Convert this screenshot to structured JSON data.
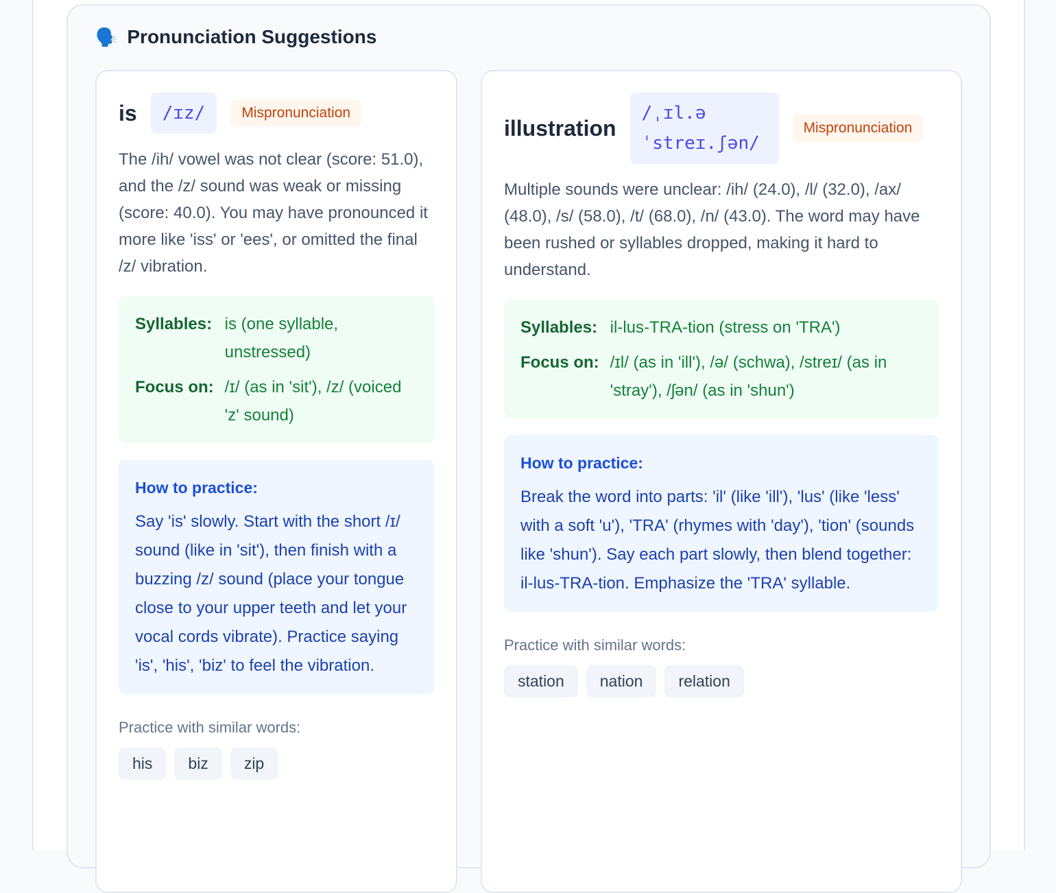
{
  "section": {
    "icon": "speaking-head-icon",
    "icon_glyph": "🗣️",
    "title": "Pronunciation Suggestions"
  },
  "cards": [
    {
      "word": "is",
      "ipa": "/ɪz/",
      "badge": "Mispronunciation",
      "description": "The /ih/ vowel was not clear (score: 51.0), and the /z/ sound was weak or missing (score: 40.0). You may have pronounced it more like 'iss' or 'ees', or omitted the final /z/ vibration.",
      "syllables_label": "Syllables:",
      "syllables": "is (one syllable, unstressed)",
      "focus_label": "Focus on:",
      "focus": "/ɪ/ (as in 'sit'), /z/ (voiced 'z' sound)",
      "practice_heading": "How to practice:",
      "practice": "Say 'is' slowly. Start with the short /ɪ/ sound (like in 'sit'), then finish with a buzzing /z/ sound (place your tongue close to your upper teeth and let your vocal cords vibrate). Practice saying 'is', 'his', 'biz' to feel the vibration.",
      "similar_label": "Practice with similar words:",
      "similar": [
        "his",
        "biz",
        "zip"
      ]
    },
    {
      "word": "illustration",
      "ipa": "/ˌɪl.ə ˈstreɪ.ʃən/",
      "badge": "Mispronunciation",
      "description": "Multiple sounds were unclear: /ih/ (24.0), /l/ (32.0), /ax/ (48.0), /s/ (58.0), /t/ (68.0), /n/ (43.0). The word may have been rushed or syllables dropped, making it hard to understand.",
      "syllables_label": "Syllables:",
      "syllables": "il-lus-TRA-tion (stress on 'TRA')",
      "focus_label": "Focus on:",
      "focus": "/ɪl/ (as in 'ill'), /ə/ (schwa), /streɪ/ (as in 'stray'), /ʃən/ (as in 'shun')",
      "practice_heading": "How to practice:",
      "practice": "Break the word into parts: 'il' (like 'ill'), 'lus' (like 'less' with a soft 'u'), 'TRA' (rhymes with 'day'), 'tion' (sounds like 'shun'). Say each part slowly, then blend together: il-lus-TRA-tion. Emphasize the 'TRA' syllable.",
      "similar_label": "Practice with similar words:",
      "similar": [
        "station",
        "nation",
        "relation"
      ]
    }
  ]
}
